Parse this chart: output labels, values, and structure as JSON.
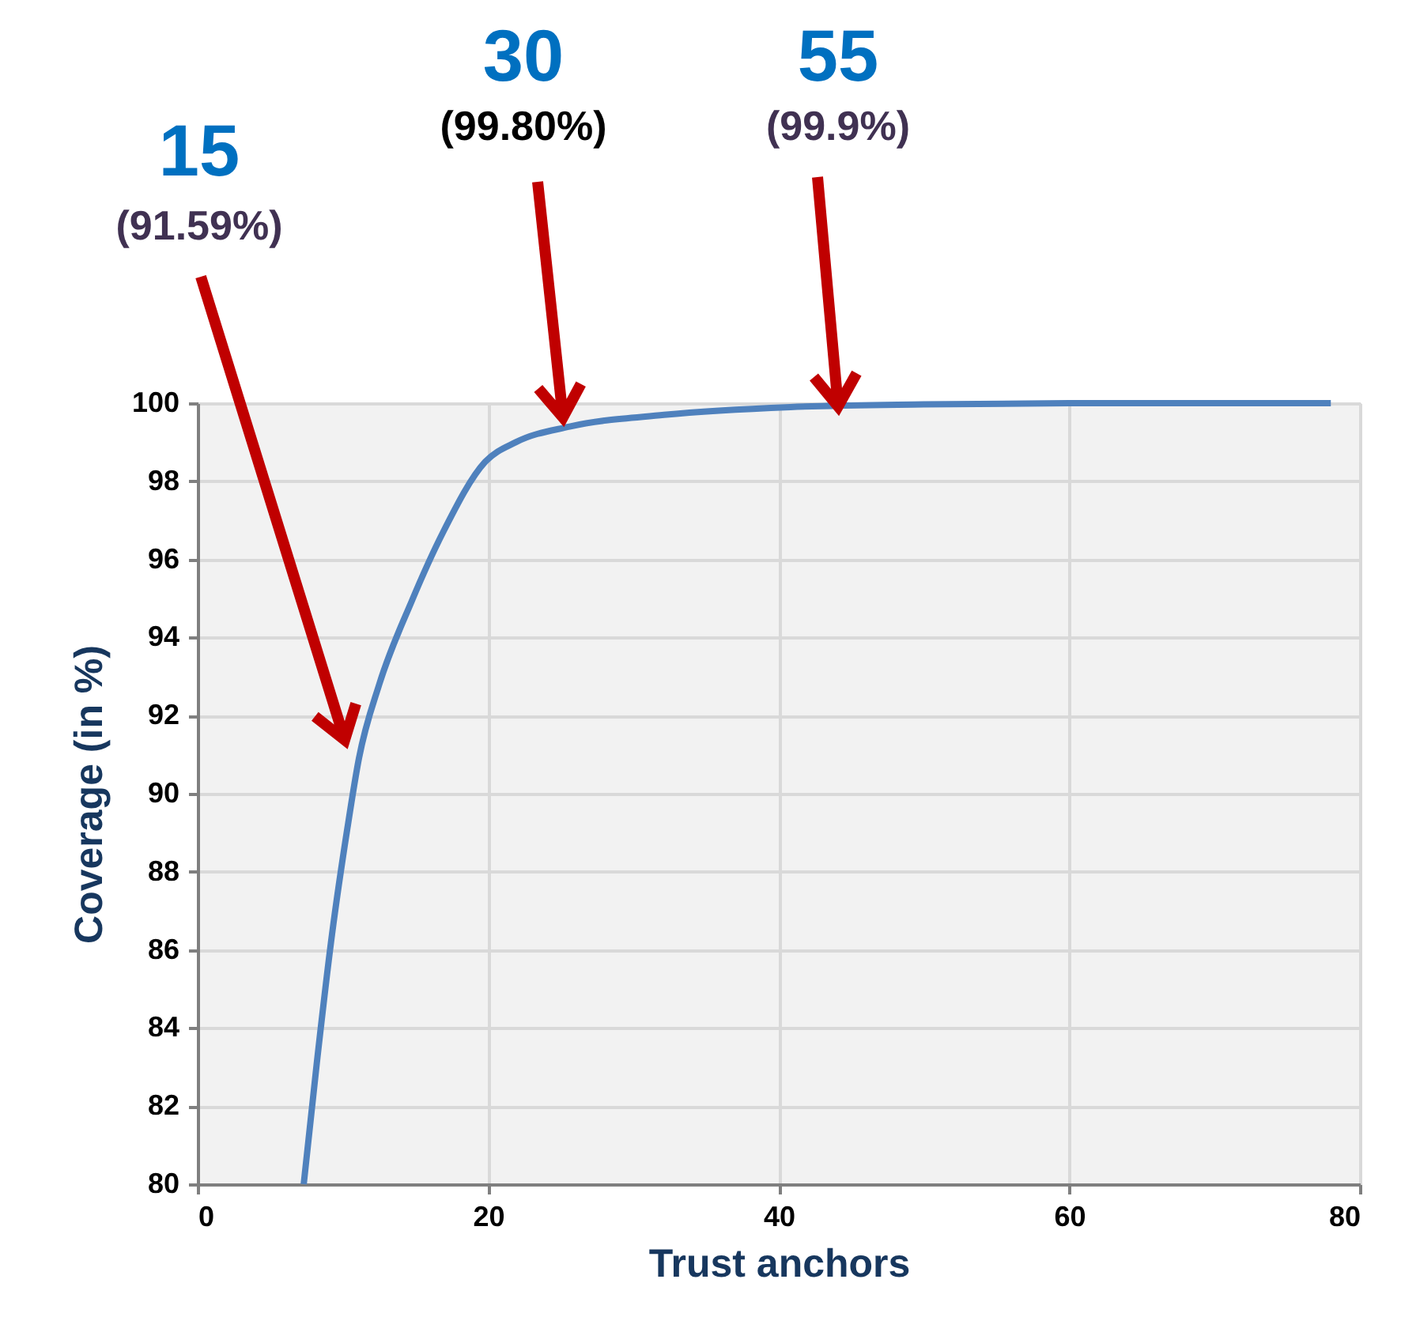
{
  "chart_data": {
    "type": "line",
    "xlabel": "Trust anchors",
    "ylabel": "Coverage (in %)",
    "annotations": [
      "15",
      "(91.59%)",
      "30",
      "(99.80%)",
      "55",
      "(99.9%)"
    ],
    "xlim": [
      0,
      80
    ],
    "xticks": [
      0,
      20,
      40,
      60,
      80
    ],
    "ylim": [
      80,
      100
    ],
    "yticks": [
      80,
      82,
      84,
      86,
      88,
      90,
      92,
      94,
      96,
      98,
      100
    ],
    "grid": true,
    "series": [
      {
        "color": "#4f81bd",
        "x": [
          7.3,
          8.2,
          9.25,
          10.3,
          11.1,
          12.5,
          14.7,
          16.9,
          19.8,
          21.9,
          25.6,
          32.1,
          40.8,
          50,
          60,
          70,
          78
        ],
        "values": [
          80,
          83.1,
          86.4,
          89.1,
          90.9,
          92.8,
          94.9,
          96.7,
          98.5,
          99.0,
          99.4,
          99.7,
          99.9,
          99.97,
          100,
          100,
          100
        ]
      }
    ]
  }
}
